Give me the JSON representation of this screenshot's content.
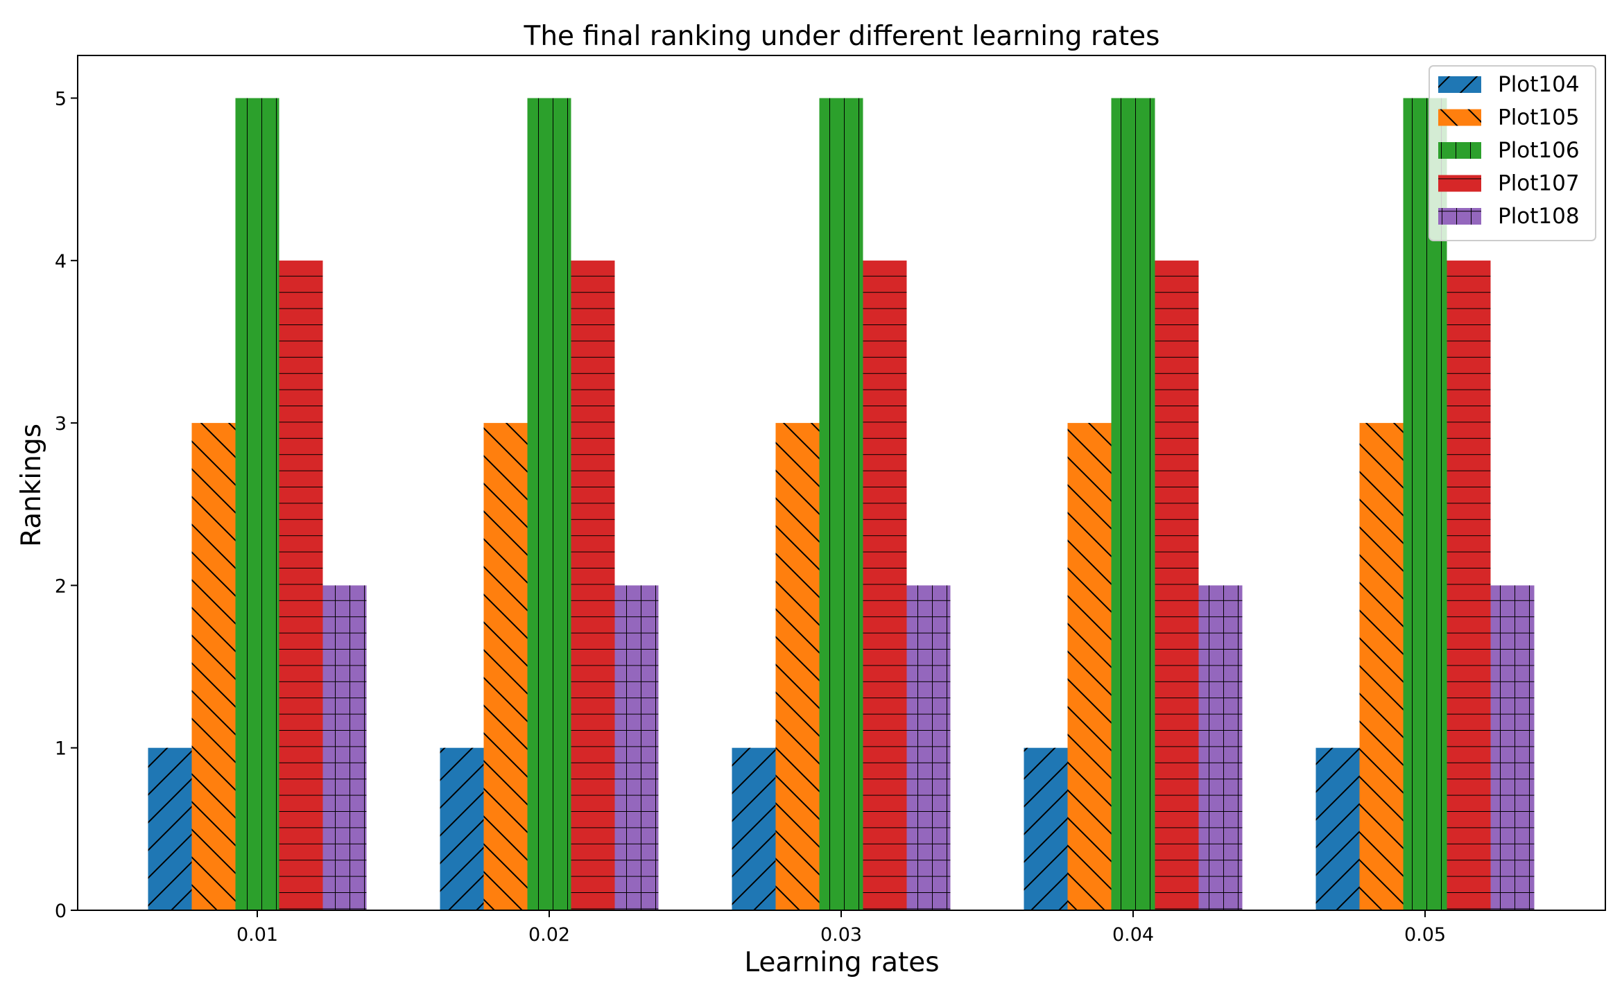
{
  "chart_data": {
    "type": "bar",
    "title": "The final ranking under different learning rates",
    "xlabel": "Learning rates",
    "ylabel": "Rankings",
    "categories": [
      "0.01",
      "0.02",
      "0.03",
      "0.04",
      "0.05"
    ],
    "ylim": [
      0,
      5.25
    ],
    "yticks": [
      0,
      1,
      2,
      3,
      4,
      5
    ],
    "grid": false,
    "legend_position": "top-right",
    "series": [
      {
        "name": "Plot104",
        "values": [
          1,
          1,
          1,
          1,
          1
        ],
        "color": "#1f77b4",
        "hatch": "/"
      },
      {
        "name": "Plot105",
        "values": [
          3,
          3,
          3,
          3,
          3
        ],
        "color": "#ff7f0e",
        "hatch": "\\"
      },
      {
        "name": "Plot106",
        "values": [
          5,
          5,
          5,
          5,
          5
        ],
        "color": "#2ca02c",
        "hatch": "|"
      },
      {
        "name": "Plot107",
        "values": [
          4,
          4,
          4,
          4,
          4
        ],
        "color": "#d62728",
        "hatch": "-"
      },
      {
        "name": "Plot108",
        "values": [
          2,
          2,
          2,
          2,
          2
        ],
        "color": "#9467bd",
        "hatch": "+"
      }
    ]
  }
}
